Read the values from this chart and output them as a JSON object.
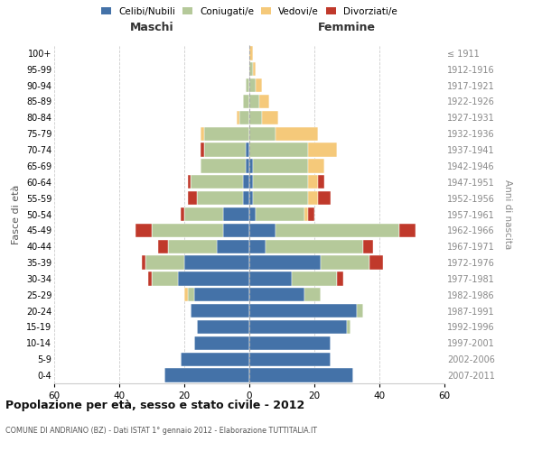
{
  "age_groups": [
    "0-4",
    "5-9",
    "10-14",
    "15-19",
    "20-24",
    "25-29",
    "30-34",
    "35-39",
    "40-44",
    "45-49",
    "50-54",
    "55-59",
    "60-64",
    "65-69",
    "70-74",
    "75-79",
    "80-84",
    "85-89",
    "90-94",
    "95-99",
    "100+"
  ],
  "birth_years": [
    "2007-2011",
    "2002-2006",
    "1997-2001",
    "1992-1996",
    "1987-1991",
    "1982-1986",
    "1977-1981",
    "1972-1976",
    "1967-1971",
    "1962-1966",
    "1957-1961",
    "1952-1956",
    "1947-1951",
    "1942-1946",
    "1937-1941",
    "1932-1936",
    "1927-1931",
    "1922-1926",
    "1917-1921",
    "1912-1916",
    "≤ 1911"
  ],
  "colors": {
    "celibi": "#4472a8",
    "coniugati": "#b5c99a",
    "vedovi": "#f5c97a",
    "divorziati": "#c0392b"
  },
  "maschi": {
    "celibi": [
      26,
      21,
      17,
      16,
      18,
      17,
      22,
      20,
      10,
      8,
      8,
      2,
      2,
      1,
      1,
      0,
      0,
      0,
      0,
      0,
      0
    ],
    "coniugati": [
      0,
      0,
      0,
      0,
      0,
      2,
      8,
      12,
      15,
      22,
      12,
      14,
      16,
      14,
      13,
      14,
      3,
      2,
      1,
      0,
      0
    ],
    "vedovi": [
      0,
      0,
      0,
      0,
      0,
      1,
      0,
      0,
      0,
      0,
      0,
      0,
      0,
      0,
      0,
      1,
      1,
      0,
      0,
      0,
      0
    ],
    "divorziati": [
      0,
      0,
      0,
      0,
      0,
      0,
      1,
      1,
      3,
      5,
      1,
      3,
      1,
      0,
      1,
      0,
      0,
      0,
      0,
      0,
      0
    ]
  },
  "femmine": {
    "celibi": [
      32,
      25,
      25,
      30,
      33,
      17,
      13,
      22,
      5,
      8,
      2,
      1,
      1,
      1,
      0,
      0,
      0,
      0,
      0,
      0,
      0
    ],
    "coniugati": [
      0,
      0,
      0,
      1,
      2,
      5,
      14,
      15,
      30,
      38,
      15,
      17,
      17,
      17,
      18,
      8,
      4,
      3,
      2,
      1,
      0
    ],
    "vedovi": [
      0,
      0,
      0,
      0,
      0,
      0,
      0,
      0,
      0,
      0,
      1,
      3,
      3,
      5,
      9,
      13,
      5,
      3,
      2,
      1,
      1
    ],
    "divorziati": [
      0,
      0,
      0,
      0,
      0,
      0,
      2,
      4,
      3,
      5,
      2,
      4,
      2,
      0,
      0,
      0,
      0,
      0,
      0,
      0,
      0
    ]
  },
  "xlim": 60,
  "title": "Popolazione per età, sesso e stato civile - 2012",
  "subtitle": "COMUNE DI ANDRIANO (BZ) - Dati ISTAT 1° gennaio 2012 - Elaborazione TUTTITALIA.IT",
  "xlabel_left": "Maschi",
  "xlabel_right": "Femmine",
  "ylabel_left": "Fasce di età",
  "ylabel_right": "Anni di nascita",
  "legend_labels": [
    "Celibi/Nubili",
    "Coniugati/e",
    "Vedovi/e",
    "Divorziati/e"
  ]
}
